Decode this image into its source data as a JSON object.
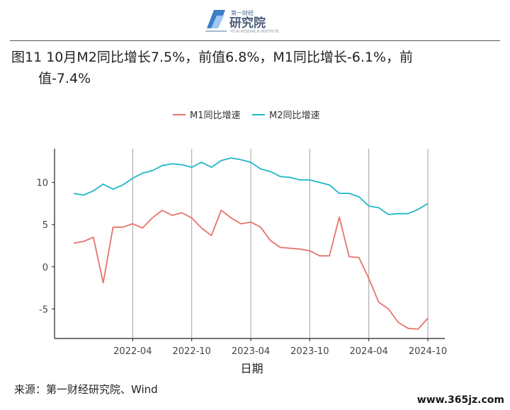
{
  "header": {
    "logo_text": "研究院",
    "logo_top_text": "第一财经",
    "logo_sub_text": "YICAI RESEARCH INSTITUTE"
  },
  "title_line1": "图11 10月M2同比增长7.5%，前值6.8%，M1同比增长-6.1%，前",
  "title_line2": "值-7.4%",
  "source": "来源：第一财经研究院、Wind",
  "watermark": "www.365jz.com",
  "colors": {
    "m1": "#e5746c",
    "m2": "#1fb8c9",
    "grid": "#a0a0a0",
    "axis": "#222222"
  },
  "chart_data": {
    "type": "line",
    "xlabel": "日期",
    "ylabel": "",
    "ylim": [
      -8.5,
      14
    ],
    "yticks": [
      -5,
      0,
      5,
      10
    ],
    "x_ticks": [
      "2022-04",
      "2022-10",
      "2023-04",
      "2023-10",
      "2024-04",
      "2024-10"
    ],
    "x": [
      "2021-10",
      "2021-11",
      "2021-12",
      "2022-01",
      "2022-02",
      "2022-03",
      "2022-04",
      "2022-05",
      "2022-06",
      "2022-07",
      "2022-08",
      "2022-09",
      "2022-10",
      "2022-11",
      "2022-12",
      "2023-01",
      "2023-02",
      "2023-03",
      "2023-04",
      "2023-05",
      "2023-06",
      "2023-07",
      "2023-08",
      "2023-09",
      "2023-10",
      "2023-11",
      "2023-12",
      "2024-01",
      "2024-02",
      "2024-03",
      "2024-04",
      "2024-05",
      "2024-06",
      "2024-07",
      "2024-08",
      "2024-09",
      "2024-10"
    ],
    "legend_position": "top",
    "series": [
      {
        "name": "M1同比增速",
        "values": [
          2.8,
          3.0,
          3.5,
          -1.9,
          4.7,
          4.7,
          5.1,
          4.6,
          5.8,
          6.7,
          6.1,
          6.4,
          5.8,
          4.6,
          3.7,
          6.7,
          5.8,
          5.1,
          5.3,
          4.7,
          3.1,
          2.3,
          2.2,
          2.1,
          1.9,
          1.3,
          1.3,
          5.9,
          1.2,
          1.1,
          -1.4,
          -4.2,
          -5.0,
          -6.6,
          -7.3,
          -7.4,
          -6.1
        ]
      },
      {
        "name": "M2同比增速",
        "values": [
          8.7,
          8.5,
          9.0,
          9.8,
          9.2,
          9.7,
          10.5,
          11.1,
          11.4,
          12.0,
          12.2,
          12.1,
          11.8,
          12.4,
          11.8,
          12.6,
          12.9,
          12.7,
          12.4,
          11.6,
          11.3,
          10.7,
          10.6,
          10.3,
          10.3,
          10.0,
          9.7,
          8.7,
          8.7,
          8.3,
          7.2,
          7.0,
          6.2,
          6.3,
          6.3,
          6.8,
          7.5
        ]
      }
    ]
  }
}
